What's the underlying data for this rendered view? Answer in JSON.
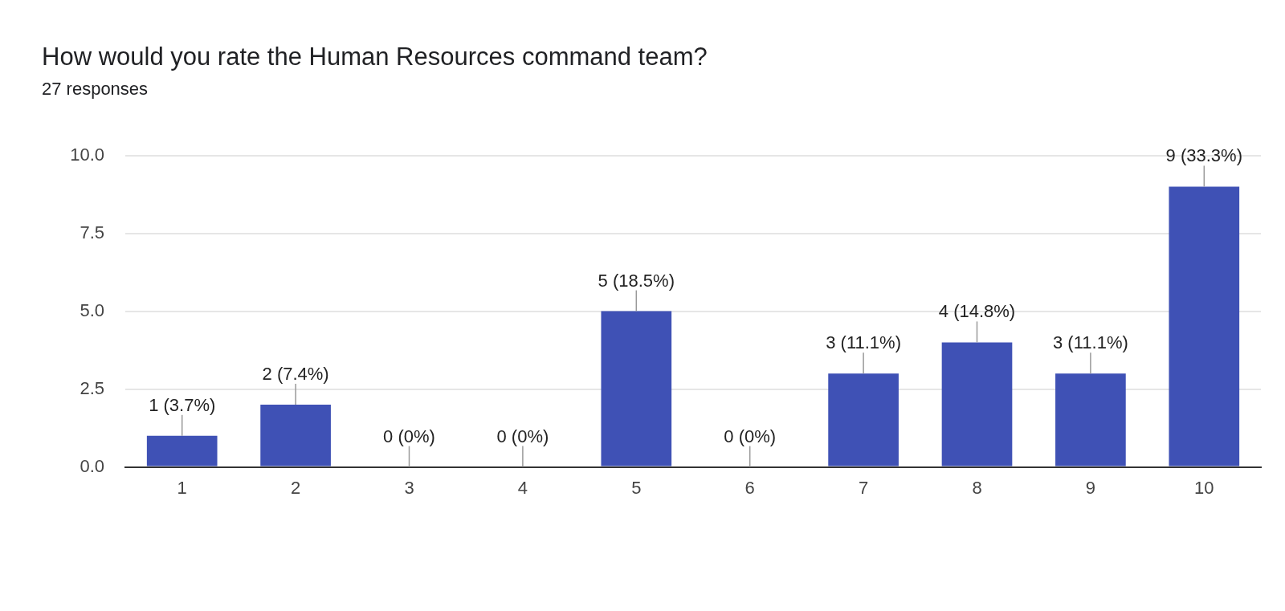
{
  "chart_data": {
    "type": "bar",
    "title": "How would you rate the Human Resources command team?",
    "subtitle": "27 responses",
    "categories": [
      "1",
      "2",
      "3",
      "4",
      "5",
      "6",
      "7",
      "8",
      "9",
      "10"
    ],
    "values": [
      1,
      2,
      0,
      0,
      5,
      0,
      3,
      4,
      3,
      9
    ],
    "value_labels": [
      "1 (3.7%)",
      "2 (7.4%)",
      "0 (0%)",
      "0 (0%)",
      "5 (18.5%)",
      "0 (0%)",
      "3 (11.1%)",
      "4 (14.8%)",
      "3 (11.1%)",
      "9 (33.3%)"
    ],
    "color": "#3f51b5",
    "ylim": [
      0,
      10
    ],
    "yticks": [
      {
        "value": 0,
        "label": "0.0"
      },
      {
        "value": 2.5,
        "label": "2.5"
      },
      {
        "value": 5,
        "label": "5.0"
      },
      {
        "value": 7.5,
        "label": "7.5"
      },
      {
        "value": 10,
        "label": "10.0"
      }
    ],
    "grid": true,
    "data_labels": true
  }
}
